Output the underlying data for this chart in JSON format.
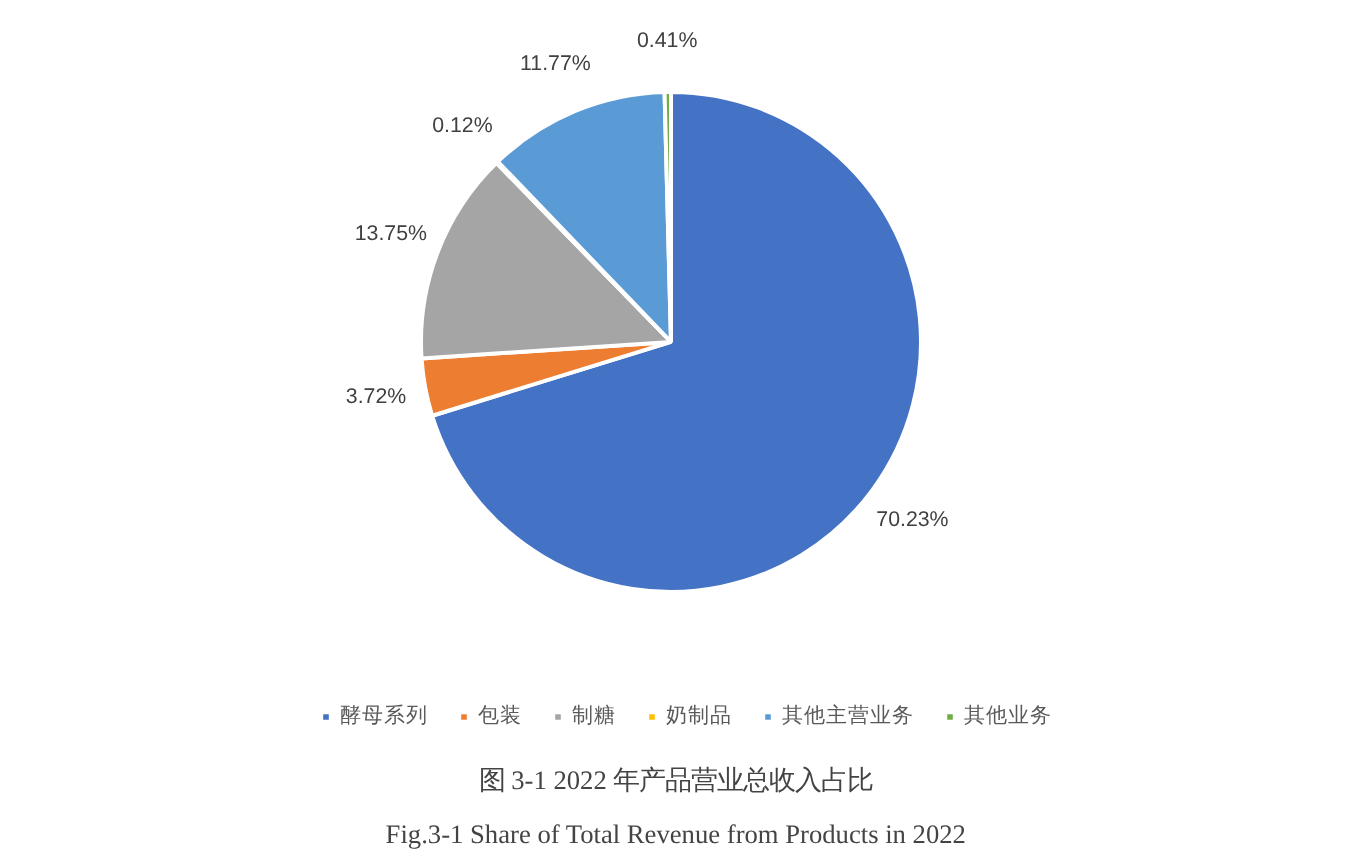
{
  "chart_data": {
    "type": "pie",
    "title": "图 3-1    2022 年产品营业总收入占比",
    "subtitle": "Fig.3-1    Share of Total Revenue from Products in 2022",
    "categories": [
      "酵母系列",
      "包装",
      "制糖",
      "奶制品",
      "其他主营业务",
      "其他业务"
    ],
    "values": [
      70.23,
      3.72,
      13.75,
      0.12,
      11.77,
      0.41
    ],
    "colors": [
      "#4472c4",
      "#ed7d31",
      "#a5a5a5",
      "#ffc000",
      "#5b9bd5",
      "#70ad47"
    ],
    "value_labels": [
      "70.23%",
      "3.72%",
      "13.75%",
      "0.12%",
      "11.77%",
      "0.41%"
    ],
    "legend": "bottom"
  }
}
